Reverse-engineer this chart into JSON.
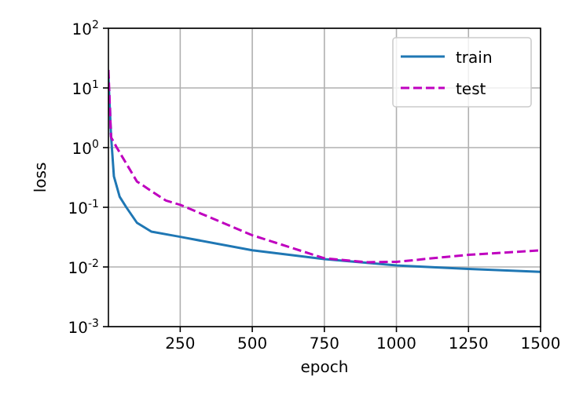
{
  "chart_data": {
    "type": "line",
    "xlabel": "epoch",
    "ylabel": "loss",
    "log": "y",
    "grid": true,
    "legend": "top right",
    "xlim": [
      1,
      1500
    ],
    "xticks": [
      250,
      500,
      750,
      1000,
      1250,
      1500
    ],
    "ylim": [
      0.001,
      100
    ],
    "yticks": [
      {
        "value": 0.001,
        "label": "10$^{-3}$"
      },
      {
        "value": 0.01,
        "label": "10$^{-2}$"
      },
      {
        "value": 0.1,
        "label": "10$^{-1}$"
      },
      {
        "value": 1,
        "label": "10$^{0}$"
      },
      {
        "value": 10,
        "label": "10$^{1}$"
      },
      {
        "value": 100,
        "label": "10$^{2}$"
      }
    ],
    "series": [
      {
        "name": "train",
        "color": "#1f77b4",
        "line_style": "solid",
        "x": [
          1,
          10,
          20,
          40,
          63,
          100,
          150,
          250,
          500,
          750,
          1000,
          1250,
          1500
        ],
        "values": [
          15,
          1.6,
          0.33,
          0.15,
          0.1,
          0.055,
          0.039,
          0.032,
          0.019,
          0.0135,
          0.0106,
          0.0093,
          0.0083
        ]
      },
      {
        "name": "test",
        "color": "#bf00bf",
        "line_style": "dashed",
        "x": [
          1,
          10,
          30,
          100,
          200,
          250,
          500,
          750,
          900,
          1000,
          1250,
          1500
        ],
        "values": [
          20,
          1.5,
          1.0,
          0.27,
          0.13,
          0.11,
          0.034,
          0.014,
          0.012,
          0.0122,
          0.016,
          0.019
        ]
      }
    ]
  }
}
